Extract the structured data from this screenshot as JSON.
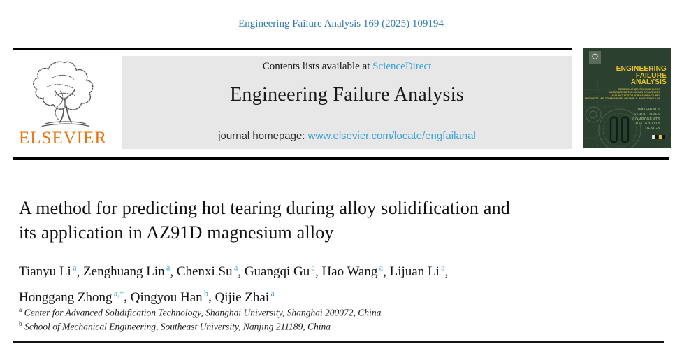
{
  "citation": "Engineering Failure Analysis 169 (2025) 109194",
  "header": {
    "contents_prefix": "Contents lists available at ",
    "sciencedirect_link": "ScienceDirect",
    "journal_title": "Engineering Failure Analysis",
    "homepage_prefix": "journal homepage: ",
    "homepage_url": "www.elsevier.com/locate/engfailanal",
    "elsevier_wordmark": "ELSEVIER"
  },
  "cover": {
    "title_lines": [
      "ENGINEERING",
      "FAILURE",
      "ANALYSIS"
    ],
    "editor_lines": [
      "EDITOR-IN-CHIEF: RICHARD CLEGG",
      "ASSOCIATE EDITOR: CESAR R.F. AZEVEDO",
      "SUBJECT EDITOR FOR MANUFACTURED",
      "PRODUCTS AND COMPONENTS: GEORGE A. PANTAZOPOULOS"
    ],
    "topics": [
      "MATERIALS",
      "STRUCTURES",
      "COMPONENTS",
      "RELIABILITY",
      "DESIGN"
    ]
  },
  "article": {
    "title": "A method for predicting hot tearing during alloy solidification and its application in AZ91D magnesium alloy",
    "title_lines": [
      "A method for predicting hot tearing during alloy solidification and",
      "its application in AZ91D magnesium alloy"
    ],
    "authors": [
      {
        "name": "Tianyu Li",
        "sup": "a"
      },
      {
        "name": "Zenghuang Lin",
        "sup": "a"
      },
      {
        "name": "Chenxi Su",
        "sup": "a"
      },
      {
        "name": "Guangqi Gu",
        "sup": "a"
      },
      {
        "name": "Hao Wang",
        "sup": "a"
      },
      {
        "name": "Lijuan Li",
        "sup": "a"
      },
      {
        "name": "Honggang Zhong",
        "sup": "a,*"
      },
      {
        "name": "Qingyou Han",
        "sup": "b"
      },
      {
        "name": "Qijie Zhai",
        "sup": "a"
      }
    ],
    "affiliations": [
      {
        "sup": "a",
        "text": "Center for Advanced Solidification Technology, Shanghai University, Shanghai 200072, China"
      },
      {
        "sup": "b",
        "text": "School of Mechanical Engineering, Southeast University, Nanjing 211189, China"
      }
    ]
  },
  "colors": {
    "citation_blue": "#2D7BAE",
    "link_blue": "#3AA1DA",
    "elsevier_orange": "#E8730F",
    "header_gray": "#E8E7E7",
    "cover_green": "#2B402F",
    "cover_yellow": "#E9C52A",
    "rule_black": "#000000"
  }
}
